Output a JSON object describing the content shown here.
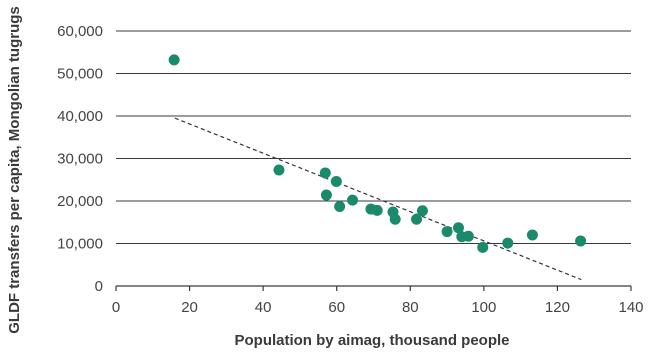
{
  "chart_data": {
    "type": "scatter",
    "title": "",
    "xlabel": "Population by aimag, thousand people",
    "ylabel": "GLDF transfers per capita, Mongolian tugrugs",
    "xlim": [
      0,
      140
    ],
    "ylim": [
      0,
      60000
    ],
    "x_ticks": [
      0,
      20,
      40,
      60,
      80,
      100,
      120,
      140
    ],
    "y_ticks": [
      0,
      10000,
      20000,
      30000,
      40000,
      50000,
      60000
    ],
    "x_tick_labels": [
      "0",
      "20",
      "40",
      "60",
      "80",
      "100",
      "120",
      "140"
    ],
    "y_tick_labels": [
      "0",
      "10,000",
      "20,000",
      "30,000",
      "40,000",
      "50,000",
      "60,000"
    ],
    "grid": "horizontal",
    "point_color": "#1a8a6b",
    "points": [
      {
        "x": 15.8,
        "y": 53200
      },
      {
        "x": 44.3,
        "y": 27300
      },
      {
        "x": 56.9,
        "y": 26600
      },
      {
        "x": 57.2,
        "y": 21400
      },
      {
        "x": 59.9,
        "y": 24600
      },
      {
        "x": 60.8,
        "y": 18700
      },
      {
        "x": 64.3,
        "y": 20200
      },
      {
        "x": 69.3,
        "y": 18100
      },
      {
        "x": 71.0,
        "y": 17800
      },
      {
        "x": 75.3,
        "y": 17400
      },
      {
        "x": 75.9,
        "y": 15700
      },
      {
        "x": 81.7,
        "y": 15700
      },
      {
        "x": 83.3,
        "y": 17700
      },
      {
        "x": 90.0,
        "y": 12800
      },
      {
        "x": 93.1,
        "y": 13700
      },
      {
        "x": 94.0,
        "y": 11600
      },
      {
        "x": 95.8,
        "y": 11700
      },
      {
        "x": 99.7,
        "y": 9100
      },
      {
        "x": 106.5,
        "y": 10100
      },
      {
        "x": 113.2,
        "y": 12000
      },
      {
        "x": 126.3,
        "y": 10600
      }
    ],
    "trendline": {
      "style": "dashed",
      "from": {
        "x": 16,
        "y": 39500
      },
      "to": {
        "x": 126.5,
        "y": 1500
      }
    }
  }
}
